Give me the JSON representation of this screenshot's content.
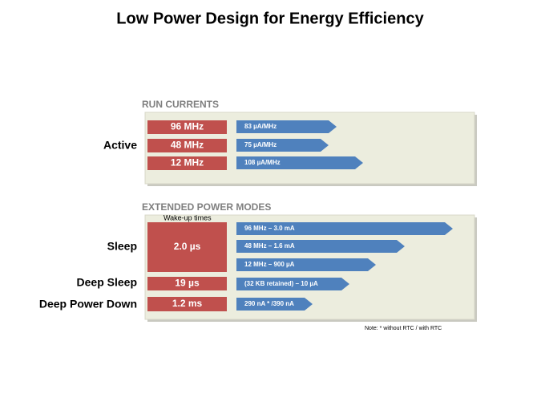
{
  "title": "Low Power Design for Energy Efficiency",
  "run_currents": {
    "heading": "RUN CURRENTS",
    "group": "Active",
    "rows": [
      {
        "freq": "96 MHz",
        "current": "83 µA/MHz"
      },
      {
        "freq": "48 MHz",
        "current": "75 µA/MHz"
      },
      {
        "freq": "12 MHz",
        "current": "108 µA/MHz"
      }
    ]
  },
  "extended": {
    "heading": "EXTENDED POWER MODES",
    "wakeup_label": "Wake-up times",
    "modes": [
      {
        "name": "Sleep",
        "time": "2.0 µs",
        "currents": [
          "96 MHz – 3.0 mA",
          "48 MHz – 1.6 mA",
          "12 MHz – 900 µA"
        ]
      },
      {
        "name": "Deep Sleep",
        "time": "19 µs",
        "currents": [
          "(32 KB retained) – 10 µA"
        ]
      },
      {
        "name": "Deep Power Down",
        "time": "1.2 ms",
        "currents": [
          "290 nA * /390 nA"
        ]
      }
    ]
  },
  "note": "Note: * without RTC / with RTC"
}
